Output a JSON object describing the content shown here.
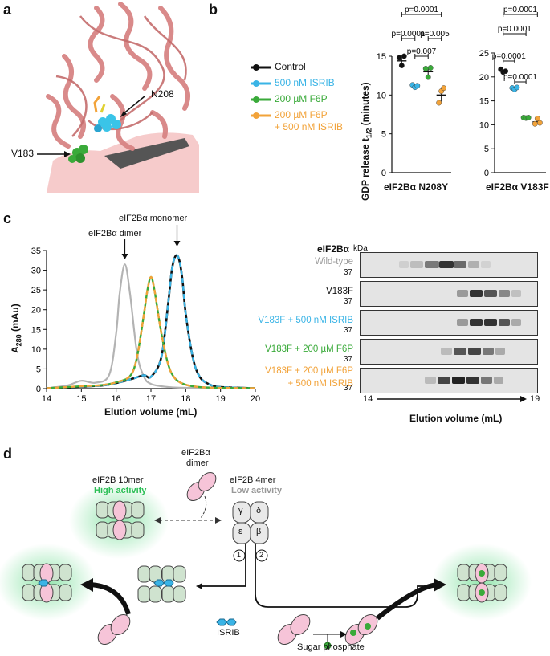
{
  "panels": {
    "a": "a",
    "b": "b",
    "c": "c",
    "d": "d"
  },
  "panel_a": {
    "labels": {
      "n208": "N208",
      "v183": "V183"
    }
  },
  "panel_b": {
    "legend": [
      {
        "label": "Control",
        "color": "#111111"
      },
      {
        "label": "500 nM ISRIB",
        "color": "#3ab4e6"
      },
      {
        "label": "200 µM F6P",
        "color": "#3aaa3a"
      },
      {
        "label": "200 µM F6P",
        "color": "#f2a33a"
      },
      {
        "label": "+ 500 nM ISRIB",
        "color": "#f2a33a"
      }
    ],
    "ylabel": "GDP release t",
    "ylabel_sub": "1/2",
    "ylabel_unit": " (minutes)",
    "left_title": "eIF2Bα N208Y",
    "right_title": "eIF2Bα V183F",
    "left_ticks": [
      "15",
      "10",
      "5",
      "0"
    ],
    "right_ticks": [
      "25",
      "20",
      "15",
      "10",
      "5",
      "0"
    ],
    "left_pvalues": [
      "p=0.0001",
      "p=0.0001",
      "p=0.005",
      "p=0.007"
    ],
    "right_pvalues": [
      "p=0.0001",
      "p=0.0001",
      "p=0.0001",
      "p=0.0001"
    ]
  },
  "chart_data": [
    {
      "type": "scatter",
      "title": "eIF2Bα N208Y",
      "ylabel": "GDP release t1/2 (minutes)",
      "ylim": [
        0,
        15
      ],
      "categories": [
        "Control",
        "500 nM ISRIB",
        "200 µM F6P",
        "200 µM F6P + 500 nM ISRIB"
      ],
      "means": [
        14.4,
        11.2,
        13.0,
        10.0
      ],
      "series": [
        {
          "name": "Control",
          "values": [
            14.8,
            13.8,
            15.0
          ]
        },
        {
          "name": "500 nM ISRIB",
          "values": [
            11.3,
            11.0,
            11.2
          ]
        },
        {
          "name": "200 µM F6P",
          "values": [
            13.4,
            12.3,
            13.5
          ]
        },
        {
          "name": "200 µM F6P + 500 nM ISRIB",
          "values": [
            9.0,
            10.5,
            10.9
          ]
        }
      ],
      "pvalues": [
        [
          "Control",
          "200 µM F6P + 500 nM ISRIB",
          "p=0.0001"
        ],
        [
          "Control",
          "500 nM ISRIB",
          "p=0.0001"
        ],
        [
          "200 µM F6P",
          "200 µM F6P + 500 nM ISRIB",
          "p=0.005"
        ],
        [
          "500 nM ISRIB",
          "200 µM F6P",
          "p=0.007"
        ]
      ]
    },
    {
      "type": "scatter",
      "title": "eIF2Bα V183F",
      "ylabel": "GDP release t1/2 (minutes)",
      "ylim": [
        0,
        25
      ],
      "categories": [
        "Control",
        "500 nM ISRIB",
        "200 µM F6P",
        "200 µM F6P + 500 nM ISRIB"
      ],
      "means": [
        21.3,
        17.6,
        11.5,
        10.6
      ],
      "series": [
        {
          "name": "Control",
          "values": [
            21.6,
            21.0,
            21.2
          ]
        },
        {
          "name": "500 nM ISRIB",
          "values": [
            17.7,
            17.4,
            17.8
          ]
        },
        {
          "name": "200 µM F6P",
          "values": [
            11.5,
            11.4,
            11.5
          ]
        },
        {
          "name": "200 µM F6P + 500 nM ISRIB",
          "values": [
            10.2,
            11.3,
            10.4
          ]
        }
      ],
      "pvalues": [
        [
          "Control",
          "200 µM F6P + 500 nM ISRIB",
          "p=0.0001"
        ],
        [
          "Control",
          "200 µM F6P",
          "p=0.0001"
        ],
        [
          "500 nM ISRIB",
          "200 µM F6P",
          "p=0.0001"
        ],
        [
          "Control",
          "500 nM ISRIB",
          "p=0.0001"
        ]
      ]
    },
    {
      "type": "line",
      "xlabel": "Elution volume (mL)",
      "ylabel": "A280 (mAu)",
      "xlim": [
        14,
        20
      ],
      "ylim": [
        0,
        35
      ],
      "xticks": [
        "14",
        "15",
        "16",
        "17",
        "18",
        "19",
        "20"
      ],
      "yticks": [
        "0",
        "5",
        "10",
        "15",
        "20",
        "25",
        "30",
        "35"
      ],
      "annotations": [
        "eIF2Bα dimer",
        "eIF2Bα monomer"
      ],
      "series": [
        {
          "name": "Wild-type",
          "color": "#b3b3b3",
          "x": [
            14,
            14.6,
            15,
            15.4,
            15.8,
            16.0,
            16.1,
            16.25,
            16.4,
            16.6,
            16.8,
            17.0,
            17.4,
            18,
            20
          ],
          "y": [
            0.1,
            0.8,
            2.0,
            1.5,
            3.5,
            14,
            24,
            31.5,
            24,
            9,
            3,
            1.2,
            0.5,
            0.2,
            0.1
          ]
        },
        {
          "name": "V183F",
          "color": "#111111",
          "x": [
            14,
            15,
            15.6,
            16.0,
            16.5,
            16.8,
            17.0,
            17.3,
            17.5,
            17.6,
            17.7,
            17.8,
            17.9,
            18.0,
            18.2,
            18.4,
            18.7,
            19,
            20
          ],
          "y": [
            0.1,
            0.5,
            0.8,
            1.4,
            2.6,
            3.4,
            3.0,
            8,
            22,
            30,
            33.5,
            33,
            28,
            19,
            8,
            3,
            1,
            0.4,
            0.1
          ]
        },
        {
          "name": "V183F + 500 nM ISRIB",
          "color": "#3ab4e6",
          "x": [
            14,
            15,
            15.6,
            16.0,
            16.5,
            16.8,
            17.0,
            17.3,
            17.5,
            17.6,
            17.7,
            17.8,
            17.9,
            18.0,
            18.2,
            18.4,
            18.7,
            19,
            20
          ],
          "y": [
            0.1,
            0.5,
            0.8,
            1.4,
            2.6,
            3.4,
            3.0,
            8,
            22,
            30,
            33.5,
            33,
            28,
            19,
            8,
            3,
            1,
            0.4,
            0.1
          ]
        },
        {
          "name": "V183F + 200 µM F6P",
          "color": "#3aaa3a",
          "x": [
            14,
            15,
            15.6,
            16.0,
            16.4,
            16.6,
            16.8,
            16.9,
            17.0,
            17.1,
            17.3,
            17.5,
            17.7,
            18,
            18.4,
            19,
            20
          ],
          "y": [
            0.1,
            0.6,
            0.9,
            1.6,
            3.2,
            8,
            19,
            25,
            28.3,
            25,
            14,
            6,
            2.5,
            1,
            0.4,
            0.2,
            0.1
          ]
        },
        {
          "name": "V183F + 200 µM F6P + 500 nM ISRIB",
          "color": "#f2a33a",
          "x": [
            14,
            15,
            15.6,
            16.0,
            16.4,
            16.6,
            16.8,
            16.9,
            17.0,
            17.1,
            17.3,
            17.5,
            17.7,
            18,
            18.4,
            19,
            20
          ],
          "y": [
            0.1,
            0.6,
            0.9,
            1.6,
            3.2,
            8,
            19,
            25,
            28.3,
            25,
            14,
            6,
            2.5,
            1,
            0.4,
            0.2,
            0.1
          ]
        }
      ]
    }
  ],
  "panel_c": {
    "ylabel": "A",
    "ylabel_sub": "280",
    "ylabel_unit": " (mAu)",
    "xlabel": "Elution volume (mL)",
    "yticks": [
      "35",
      "30",
      "25",
      "20",
      "15",
      "10",
      "5",
      "0"
    ],
    "xticks": [
      "14",
      "15",
      "16",
      "17",
      "18",
      "19",
      "20"
    ],
    "dimer_label": "eIF2Bα dimer",
    "monomer_label": "eIF2Bα monomer",
    "gel": {
      "header": "eIF2Bα",
      "kda": "kDa",
      "marker": "37",
      "lanes": [
        {
          "label": "Wild-type",
          "color": "#9a9a9a"
        },
        {
          "label": "V183F",
          "color": "#111111"
        },
        {
          "label": "V183F + 500 nM ISRIB",
          "color": "#3ab4e6"
        },
        {
          "label": "V183F + 200 µM F6P",
          "color": "#3aaa3a"
        },
        {
          "label": "V183F + 200 µM F6P",
          "color": "#f2a33a"
        },
        {
          "label": "+ 500 nM ISRIB",
          "color": "#f2a33a"
        }
      ],
      "axis_start": "14",
      "axis_end": "19",
      "xlabel": "Elution volume (mL)"
    }
  },
  "panel_d": {
    "tenmer_title": "eIF2B 10mer",
    "tenmer_activity": "High activity",
    "dimer_line1": "eIF2Bα",
    "dimer_line2": "dimer",
    "fourmer_title": "eIF2B 4mer",
    "fourmer_activity": "Low activity",
    "subunits": [
      "γ",
      "δ",
      "ε",
      "β"
    ],
    "path1": "1",
    "path2": "2",
    "isrib": "ISRIB",
    "sugar": "Sugar phosphate"
  }
}
